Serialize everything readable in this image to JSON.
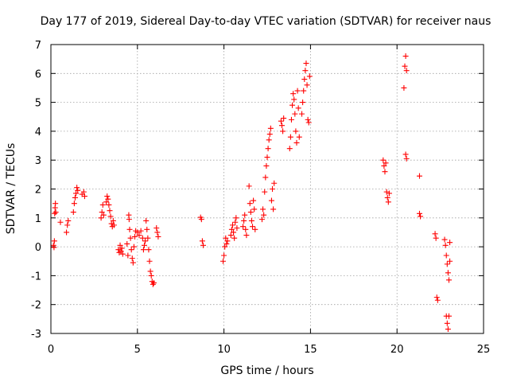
{
  "chart_data": {
    "type": "scatter",
    "title": "Day 177 of 2019, Sidereal Day-to-day VTEC variation (SDTVAR) for receiver naus",
    "xlabel": "GPS time / hours",
    "ylabel": "SDTVAR / TECUs",
    "xlim": [
      0,
      25
    ],
    "ylim": [
      -3,
      7
    ],
    "xticks": [
      0,
      5,
      10,
      15,
      20,
      25
    ],
    "yticks": [
      -3,
      -2,
      -1,
      0,
      1,
      2,
      3,
      4,
      5,
      6,
      7
    ],
    "grid": true,
    "marker": "plus",
    "series": [
      {
        "name": "SDTVAR",
        "color": "#ff0000",
        "points": [
          [
            0.15,
            0.05
          ],
          [
            0.18,
            -0.02
          ],
          [
            0.2,
            0.2
          ],
          [
            0.22,
            1.15
          ],
          [
            0.24,
            1.35
          ],
          [
            0.26,
            1.5
          ],
          [
            0.28,
            1.2
          ],
          [
            0.55,
            0.85
          ],
          [
            0.9,
            0.5
          ],
          [
            0.95,
            0.75
          ],
          [
            1.0,
            0.9
          ],
          [
            1.3,
            1.2
          ],
          [
            1.35,
            1.5
          ],
          [
            1.4,
            1.7
          ],
          [
            1.45,
            1.85
          ],
          [
            1.5,
            2.05
          ],
          [
            1.55,
            1.95
          ],
          [
            1.8,
            1.82
          ],
          [
            1.9,
            1.9
          ],
          [
            1.95,
            1.75
          ],
          [
            2.9,
            1.0
          ],
          [
            2.95,
            1.2
          ],
          [
            3.0,
            1.45
          ],
          [
            3.05,
            1.1
          ],
          [
            3.2,
            1.55
          ],
          [
            3.25,
            1.75
          ],
          [
            3.3,
            1.65
          ],
          [
            3.35,
            1.45
          ],
          [
            3.4,
            1.25
          ],
          [
            3.45,
            1.05
          ],
          [
            3.5,
            0.8
          ],
          [
            3.55,
            0.7
          ],
          [
            3.6,
            0.9
          ],
          [
            3.65,
            0.75
          ],
          [
            3.9,
            -0.1
          ],
          [
            3.95,
            -0.2
          ],
          [
            4.0,
            0.05
          ],
          [
            4.05,
            -0.15
          ],
          [
            4.1,
            -0.05
          ],
          [
            4.15,
            -0.25
          ],
          [
            4.4,
            0.1
          ],
          [
            4.45,
            -0.3
          ],
          [
            4.5,
            1.1
          ],
          [
            4.52,
            0.95
          ],
          [
            4.55,
            0.6
          ],
          [
            4.6,
            0.3
          ],
          [
            4.65,
            -0.1
          ],
          [
            4.7,
            -0.4
          ],
          [
            4.75,
            -0.55
          ],
          [
            4.8,
            0.0
          ],
          [
            4.85,
            0.35
          ],
          [
            4.9,
            0.55
          ],
          [
            5.0,
            0.5
          ],
          [
            5.1,
            0.4
          ],
          [
            5.2,
            0.55
          ],
          [
            5.3,
            0.3
          ],
          [
            5.35,
            -0.1
          ],
          [
            5.4,
            0.05
          ],
          [
            5.45,
            0.2
          ],
          [
            5.5,
            0.9
          ],
          [
            5.55,
            0.6
          ],
          [
            5.6,
            0.3
          ],
          [
            5.65,
            -0.1
          ],
          [
            5.7,
            -0.5
          ],
          [
            5.75,
            -0.85
          ],
          [
            5.8,
            -1.0
          ],
          [
            5.85,
            -1.2
          ],
          [
            5.9,
            -1.3
          ],
          [
            5.95,
            -1.25
          ],
          [
            6.1,
            0.65
          ],
          [
            6.15,
            0.5
          ],
          [
            6.2,
            0.35
          ],
          [
            8.65,
            1.02
          ],
          [
            8.7,
            0.95
          ],
          [
            8.75,
            0.2
          ],
          [
            8.8,
            0.05
          ],
          [
            9.95,
            -0.5
          ],
          [
            10.0,
            -0.3
          ],
          [
            10.05,
            0.0
          ],
          [
            10.1,
            0.3
          ],
          [
            10.15,
            0.1
          ],
          [
            10.2,
            0.2
          ],
          [
            10.4,
            0.4
          ],
          [
            10.45,
            0.6
          ],
          [
            10.5,
            0.75
          ],
          [
            10.55,
            0.5
          ],
          [
            10.6,
            0.3
          ],
          [
            10.65,
            0.85
          ],
          [
            10.7,
            1.0
          ],
          [
            10.75,
            0.65
          ],
          [
            11.1,
            0.7
          ],
          [
            11.15,
            0.9
          ],
          [
            11.2,
            1.1
          ],
          [
            11.25,
            0.6
          ],
          [
            11.3,
            0.4
          ],
          [
            11.45,
            2.1
          ],
          [
            11.5,
            1.5
          ],
          [
            11.55,
            1.2
          ],
          [
            11.6,
            0.9
          ],
          [
            11.65,
            0.7
          ],
          [
            11.7,
            1.6
          ],
          [
            11.75,
            1.3
          ],
          [
            11.8,
            0.6
          ],
          [
            12.2,
            0.95
          ],
          [
            12.25,
            1.3
          ],
          [
            12.3,
            1.1
          ],
          [
            12.35,
            1.9
          ],
          [
            12.4,
            2.4
          ],
          [
            12.45,
            2.8
          ],
          [
            12.5,
            3.1
          ],
          [
            12.55,
            3.4
          ],
          [
            12.6,
            3.7
          ],
          [
            12.65,
            3.9
          ],
          [
            12.7,
            4.1
          ],
          [
            12.75,
            1.6
          ],
          [
            12.8,
            2.0
          ],
          [
            12.85,
            1.3
          ],
          [
            12.9,
            2.2
          ],
          [
            13.3,
            4.35
          ],
          [
            13.35,
            4.2
          ],
          [
            13.4,
            4.0
          ],
          [
            13.45,
            4.45
          ],
          [
            13.8,
            3.4
          ],
          [
            13.85,
            3.8
          ],
          [
            13.9,
            4.4
          ],
          [
            13.95,
            4.9
          ],
          [
            14.0,
            5.3
          ],
          [
            14.05,
            5.1
          ],
          [
            14.1,
            4.6
          ],
          [
            14.15,
            4.0
          ],
          [
            14.2,
            3.6
          ],
          [
            14.25,
            5.4
          ],
          [
            14.3,
            4.8
          ],
          [
            14.35,
            3.8
          ],
          [
            14.5,
            4.6
          ],
          [
            14.55,
            5.0
          ],
          [
            14.6,
            5.4
          ],
          [
            14.65,
            5.8
          ],
          [
            14.7,
            6.1
          ],
          [
            14.75,
            6.35
          ],
          [
            14.8,
            5.6
          ],
          [
            14.85,
            4.4
          ],
          [
            14.9,
            4.3
          ],
          [
            14.95,
            5.9
          ],
          [
            19.2,
            3.0
          ],
          [
            19.25,
            2.8
          ],
          [
            19.3,
            2.6
          ],
          [
            19.35,
            2.9
          ],
          [
            19.4,
            1.9
          ],
          [
            19.45,
            1.7
          ],
          [
            19.5,
            1.55
          ],
          [
            19.55,
            1.85
          ],
          [
            20.4,
            5.5
          ],
          [
            20.45,
            6.25
          ],
          [
            20.5,
            6.6
          ],
          [
            20.55,
            6.1
          ],
          [
            20.5,
            3.2
          ],
          [
            20.55,
            3.05
          ],
          [
            21.3,
            2.45
          ],
          [
            21.3,
            1.15
          ],
          [
            21.35,
            1.05
          ],
          [
            22.2,
            0.45
          ],
          [
            22.25,
            0.3
          ],
          [
            22.3,
            -1.75
          ],
          [
            22.35,
            -1.85
          ],
          [
            22.75,
            0.25
          ],
          [
            22.8,
            0.05
          ],
          [
            22.85,
            -0.3
          ],
          [
            22.9,
            -0.6
          ],
          [
            22.95,
            -0.9
          ],
          [
            23.0,
            -1.15
          ],
          [
            23.05,
            -0.5
          ],
          [
            22.85,
            -2.4
          ],
          [
            22.9,
            -2.65
          ],
          [
            22.95,
            -2.85
          ],
          [
            23.0,
            -2.4
          ],
          [
            23.05,
            0.15
          ]
        ]
      }
    ]
  }
}
